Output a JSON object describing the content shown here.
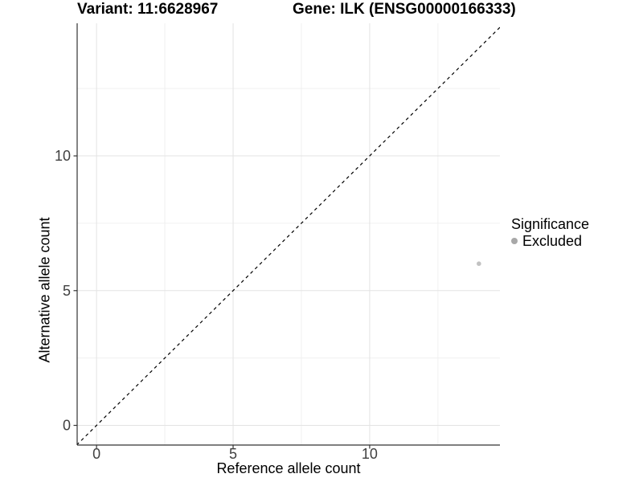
{
  "titles": {
    "left": "Variant: 11:6628967",
    "right": "Gene: ILK (ENSG00000166333)"
  },
  "chart_data": {
    "type": "scatter",
    "xlabel": "Reference allele count",
    "ylabel": "Alternative allele count",
    "xlim": [
      -0.71,
      14.77
    ],
    "ylim": [
      -0.73,
      14.92
    ],
    "x_ticks": [
      0,
      5,
      10
    ],
    "y_ticks": [
      0,
      5,
      10
    ],
    "x_minor_ticks": [
      2.5,
      7.5,
      12.5
    ],
    "y_minor_ticks": [
      2.5,
      7.5,
      12.5
    ],
    "grid": true,
    "reference_line": {
      "type": "identity",
      "style": "dashed",
      "color": "#000000"
    },
    "points": [
      {
        "x": 14,
        "y": 6,
        "series": "Excluded"
      }
    ]
  },
  "legend": {
    "title": "Significance",
    "position": "right",
    "items": [
      {
        "label": "Excluded",
        "color": "#a8a8a8"
      }
    ]
  },
  "colors": {
    "point": "#c2c2c2",
    "grid_major": "#e3e3e3",
    "grid_minor": "#f0f0f0",
    "axis": "#333333",
    "tick_label": "#404040"
  }
}
